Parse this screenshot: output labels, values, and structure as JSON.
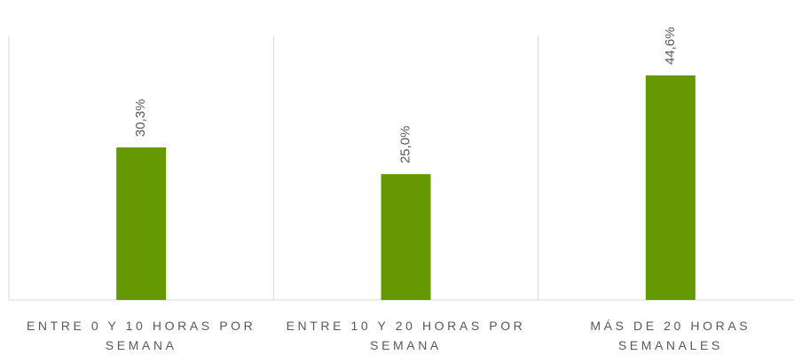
{
  "chart_data": {
    "type": "bar",
    "categories": [
      "ENTRE 0 Y 10 HORAS POR SEMANA",
      "ENTRE 10 Y 20 HORAS POR SEMANA",
      "MÁS DE 20 HORAS SEMANALES"
    ],
    "values": [
      30.3,
      25.0,
      44.6
    ],
    "value_labels": [
      "30,3%",
      "25,0%",
      "44,6%"
    ],
    "color": "#669900"
  }
}
